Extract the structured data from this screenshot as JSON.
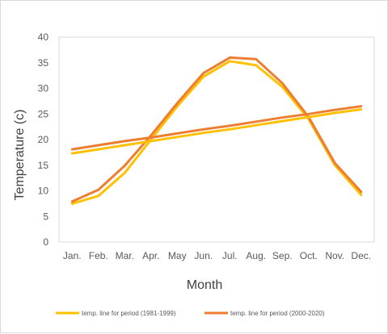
{
  "chart_data": {
    "type": "line",
    "title": "",
    "xlabel": "Month",
    "ylabel": "Temperature (c)",
    "categories": [
      "Jan.",
      "Feb.",
      "Mar.",
      "Apr.",
      "May",
      "Jun.",
      "Jul.",
      "Aug.",
      "Sep.",
      "Oct.",
      "Nov.",
      "Dec."
    ],
    "ylim": [
      0,
      40
    ],
    "yticks": [
      0,
      5,
      10,
      15,
      20,
      25,
      30,
      35,
      40
    ],
    "grid": false,
    "legend_position": "bottom",
    "series": [
      {
        "name": "temp. line for period (1981-1999)",
        "color": "#FFC000",
        "values": [
          7.5,
          9.0,
          13.5,
          20.0,
          26.5,
          32.3,
          35.3,
          34.5,
          30.3,
          24.0,
          15.0,
          9.2
        ]
      },
      {
        "name": "temp. line for period (2000-2020)",
        "color": "#ED7D31",
        "values": [
          7.9,
          10.2,
          14.9,
          20.8,
          27.1,
          33.0,
          36.0,
          35.7,
          31.0,
          24.4,
          15.4,
          9.8
        ]
      },
      {
        "name": "",
        "color": "#FFC000",
        "trendline": true,
        "values": [
          17.3,
          18.1,
          18.9,
          19.7,
          20.5,
          21.3,
          22.0,
          22.8,
          23.6,
          24.4,
          25.2,
          25.9
        ]
      },
      {
        "name": "",
        "color": "#ED7D31",
        "trendline": true,
        "values": [
          18.1,
          18.9,
          19.7,
          20.4,
          21.2,
          22.0,
          22.7,
          23.5,
          24.3,
          25.0,
          25.8,
          26.5
        ]
      }
    ]
  }
}
